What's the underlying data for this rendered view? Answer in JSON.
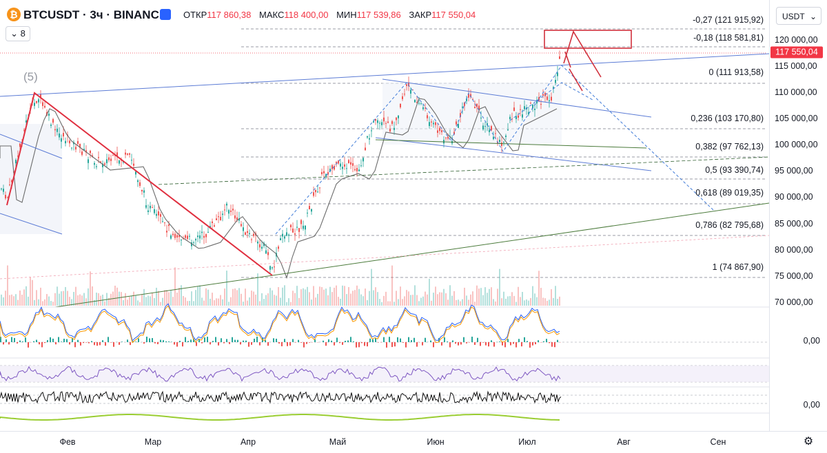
{
  "header": {
    "symbol": "BTCUSDT · 3ч · BINANCE",
    "open_label": "ОТКР",
    "open": "117 860,38",
    "high_label": "МАКС",
    "high": "118 400,00",
    "low_label": "МИН",
    "low": "117 539,86",
    "close_label": "ЗАКР",
    "close": "117 550,04",
    "layers_count": "8",
    "currency": "USDT",
    "logo_icon": "bitcoin-logo-icon"
  },
  "price_axis": {
    "ticks": [
      "120 000,00",
      "115 000,00",
      "110 000,00",
      "105 000,00",
      "100 000,00",
      "95 000,00",
      "90 000,00",
      "85 000,00",
      "80 000,00",
      "75 000,00",
      "70 000,00"
    ],
    "current_price": "117 550,04",
    "current_color": "#f23645"
  },
  "time_axis": {
    "labels": [
      "Фев",
      "Мар",
      "Апр",
      "Май",
      "Июн",
      "Июл",
      "Авг",
      "Сен"
    ]
  },
  "fib_levels": [
    {
      "label": "-0,27 (121 915,92)"
    },
    {
      "label": "-0,18 (118 581,81)"
    },
    {
      "label": "0 (111 913,58)"
    },
    {
      "label": "0,236 (103 170,80)"
    },
    {
      "label": "0,382 (97 762,13)"
    },
    {
      "label": "0,5 (93 390,74)"
    },
    {
      "label": "0,618 (89 019,35)"
    },
    {
      "label": "0,786 (82 795,68)"
    },
    {
      "label": "1 (74 867,90)"
    }
  ],
  "wave_label": "(5)",
  "indicators": {
    "osc1_value": "0,00",
    "osc3_value": "0,00"
  },
  "colors": {
    "up": "#26a69a",
    "down": "#ef5350",
    "trend_red": "#e03040",
    "trend_blue": "#5b7bd5",
    "trend_green": "#4a7a3a"
  }
}
